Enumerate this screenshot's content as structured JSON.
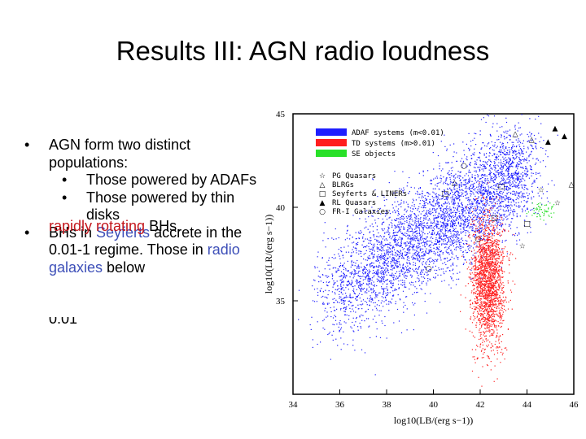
{
  "slide": {
    "title": "Results III: AGN radio loudness",
    "bullets": [
      {
        "level": 1,
        "parts": [
          {
            "t": "AGN form two distinct populations:"
          }
        ]
      },
      {
        "level": 2,
        "parts": [
          {
            "t": "Those powered by ADAFs"
          }
        ]
      },
      {
        "level": 2,
        "parts": [
          {
            "t": "Those powered by thin disks"
          }
        ]
      },
      {
        "level": 1,
        "parts": [
          {
            "t": "BHs in "
          },
          {
            "t": "Seyferts",
            "c": "blue"
          },
          {
            "t": " accrete in the 0.01-1 regime. Those in "
          },
          {
            "t": "radio galaxies",
            "c": "blue"
          },
          {
            "t": " below"
          }
        ]
      }
    ],
    "cut_line": "0.01",
    "tail_parts": [
      {
        "t": "rapidly rotating",
        "c": "red"
      },
      {
        "t": " BHs."
      }
    ]
  },
  "chart_data": {
    "type": "scatter",
    "xlabel": "log10(LB/(erg s−1))",
    "ylabel": "log10(LR/(erg s−1))",
    "xlim": [
      34,
      46
    ],
    "ylim": [
      30,
      45
    ],
    "xticks": [
      "34",
      "36",
      "38",
      "40",
      "42",
      "44",
      "46"
    ],
    "yticks": [
      "45",
      "40",
      "35"
    ],
    "legend": [
      {
        "label": "ADAF systems  (m<0.01)",
        "color": "#1e1eff"
      },
      {
        "label": "TD systems  (m>0.01)",
        "color": "#ff1e1e"
      },
      {
        "label": "SE objects",
        "color": "#28e028"
      }
    ],
    "markers": [
      {
        "symbol": "☆",
        "label": "PG Quasars"
      },
      {
        "symbol": "△",
        "label": "BLRGs"
      },
      {
        "symbol": "□",
        "label": "Seyferts & LINERs"
      },
      {
        "symbol": "▲",
        "label": "RL Quasars"
      },
      {
        "symbol": "○",
        "label": "FR-I Galaxies"
      }
    ],
    "series": [
      {
        "name": "ADAF systems  (m<0.01)",
        "color": "#1e1eff",
        "density_line": {
          "x": [
            35.5,
            44.0
          ],
          "y": [
            35.2,
            42.2
          ]
        },
        "width": 2.5,
        "n": 4500
      },
      {
        "name": "TD systems  (m>0.01)",
        "color": "#ff1e1e",
        "center": [
          42.3,
          36.0
        ],
        "sx": 0.35,
        "sy": 1.7,
        "n": 2000
      },
      {
        "name": "SE objects",
        "color": "#28e028",
        "center": [
          44.6,
          39.8
        ],
        "sx": 0.25,
        "sy": 0.25,
        "n": 60
      }
    ]
  }
}
